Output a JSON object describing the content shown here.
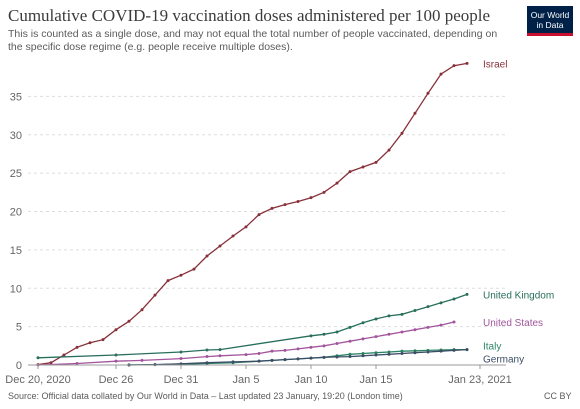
{
  "header": {
    "title": "Cumulative COVID-19 vaccination doses administered per 100 people",
    "subtitle": "This is counted as a single dose, and may not equal the total number of people vaccinated, depending on the specific dose regime (e.g. people receive multiple doses).",
    "logo_line1": "Our World",
    "logo_line2": "in Data"
  },
  "footer": {
    "source": "Source: Official data collated by Our World in Data – Last updated 23 January, 19:20 (London time)",
    "license": "CC BY"
  },
  "chart_data": {
    "type": "line",
    "x_axis": {
      "range_days": [
        0,
        34
      ],
      "ticks": [
        {
          "day": 0,
          "label": "Dec 20, 2020"
        },
        {
          "day": 6,
          "label": "Dec 26"
        },
        {
          "day": 11,
          "label": "Dec 31"
        },
        {
          "day": 16,
          "label": "Jan 5"
        },
        {
          "day": 21,
          "label": "Jan 10"
        },
        {
          "day": 26,
          "label": "Jan 15"
        },
        {
          "day": 34,
          "label": "Jan 23, 2021"
        }
      ]
    },
    "y_axis": {
      "range": [
        0,
        40
      ],
      "ticks": [
        0,
        5,
        10,
        15,
        20,
        25,
        30,
        35
      ]
    },
    "grid": "horizontal-dashed",
    "series": [
      {
        "name": "Israel",
        "color": "#883039",
        "points": [
          [
            0,
            0.05
          ],
          [
            1,
            0.3
          ],
          [
            2,
            1.3
          ],
          [
            3,
            2.3
          ],
          [
            4,
            2.9
          ],
          [
            5,
            3.3
          ],
          [
            6,
            4.6
          ],
          [
            7,
            5.7
          ],
          [
            8,
            7.2
          ],
          [
            9,
            9.1
          ],
          [
            10,
            11.0
          ],
          [
            11,
            11.7
          ],
          [
            12,
            12.5
          ],
          [
            13,
            14.2
          ],
          [
            14,
            15.5
          ],
          [
            15,
            16.8
          ],
          [
            16,
            18.0
          ],
          [
            17,
            19.6
          ],
          [
            18,
            20.4
          ],
          [
            19,
            20.9
          ],
          [
            20,
            21.3
          ],
          [
            21,
            21.8
          ],
          [
            22,
            22.5
          ],
          [
            23,
            23.7
          ],
          [
            24,
            25.2
          ],
          [
            25,
            25.8
          ],
          [
            26,
            26.4
          ],
          [
            27,
            28.0
          ],
          [
            28,
            30.2
          ],
          [
            29,
            32.8
          ],
          [
            30,
            35.4
          ],
          [
            31,
            37.9
          ],
          [
            32,
            39.0
          ],
          [
            33,
            39.3
          ]
        ]
      },
      {
        "name": "United Kingdom",
        "color": "#286f5c",
        "points": [
          [
            0,
            0.94
          ],
          [
            6,
            1.3
          ],
          [
            11,
            1.7
          ],
          [
            13,
            1.95
          ],
          [
            14,
            2.0
          ],
          [
            21,
            3.8
          ],
          [
            22,
            4.0
          ],
          [
            23,
            4.3
          ],
          [
            24,
            4.9
          ],
          [
            25,
            5.5
          ],
          [
            26,
            6.0
          ],
          [
            27,
            6.4
          ],
          [
            28,
            6.6
          ],
          [
            29,
            7.1
          ],
          [
            30,
            7.6
          ],
          [
            31,
            8.1
          ],
          [
            32,
            8.6
          ],
          [
            33,
            9.2
          ]
        ]
      },
      {
        "name": "United States",
        "color": "#a2559c",
        "points": [
          [
            0,
            0.0
          ],
          [
            3,
            0.2
          ],
          [
            6,
            0.5
          ],
          [
            8,
            0.6
          ],
          [
            11,
            0.84
          ],
          [
            13,
            1.1
          ],
          [
            14,
            1.2
          ],
          [
            16,
            1.35
          ],
          [
            17,
            1.5
          ],
          [
            18,
            1.8
          ],
          [
            19,
            1.9
          ],
          [
            20,
            2.1
          ],
          [
            21,
            2.3
          ],
          [
            22,
            2.5
          ],
          [
            23,
            2.8
          ],
          [
            24,
            3.1
          ],
          [
            25,
            3.4
          ],
          [
            26,
            3.7
          ],
          [
            27,
            4.0
          ],
          [
            28,
            4.3
          ],
          [
            29,
            4.6
          ],
          [
            30,
            4.9
          ],
          [
            31,
            5.2
          ],
          [
            32,
            5.6
          ]
        ]
      },
      {
        "name": "Italy",
        "color": "#2c8465",
        "points": [
          [
            7,
            0.01
          ],
          [
            9,
            0.05
          ],
          [
            11,
            0.1
          ],
          [
            13,
            0.2
          ],
          [
            15,
            0.3
          ],
          [
            17,
            0.5
          ],
          [
            18,
            0.6
          ],
          [
            19,
            0.7
          ],
          [
            20,
            0.8
          ],
          [
            21,
            0.9
          ],
          [
            22,
            1.0
          ],
          [
            23,
            1.2
          ],
          [
            24,
            1.4
          ],
          [
            25,
            1.5
          ],
          [
            26,
            1.6
          ],
          [
            27,
            1.7
          ],
          [
            28,
            1.8
          ],
          [
            29,
            1.85
          ],
          [
            30,
            1.9
          ],
          [
            31,
            1.95
          ],
          [
            32,
            2.0
          ],
          [
            33,
            2.0
          ]
        ]
      },
      {
        "name": "Germany",
        "color": "#3c4e66",
        "points": [
          [
            7,
            0.0
          ],
          [
            9,
            0.05
          ],
          [
            11,
            0.15
          ],
          [
            13,
            0.3
          ],
          [
            15,
            0.4
          ],
          [
            17,
            0.5
          ],
          [
            18,
            0.6
          ],
          [
            19,
            0.7
          ],
          [
            20,
            0.8
          ],
          [
            21,
            0.9
          ],
          [
            22,
            1.0
          ],
          [
            23,
            1.05
          ],
          [
            24,
            1.1
          ],
          [
            25,
            1.2
          ],
          [
            26,
            1.3
          ],
          [
            27,
            1.4
          ],
          [
            28,
            1.5
          ],
          [
            29,
            1.6
          ],
          [
            30,
            1.7
          ],
          [
            31,
            1.8
          ],
          [
            32,
            1.9
          ],
          [
            33,
            2.0
          ]
        ]
      }
    ]
  }
}
